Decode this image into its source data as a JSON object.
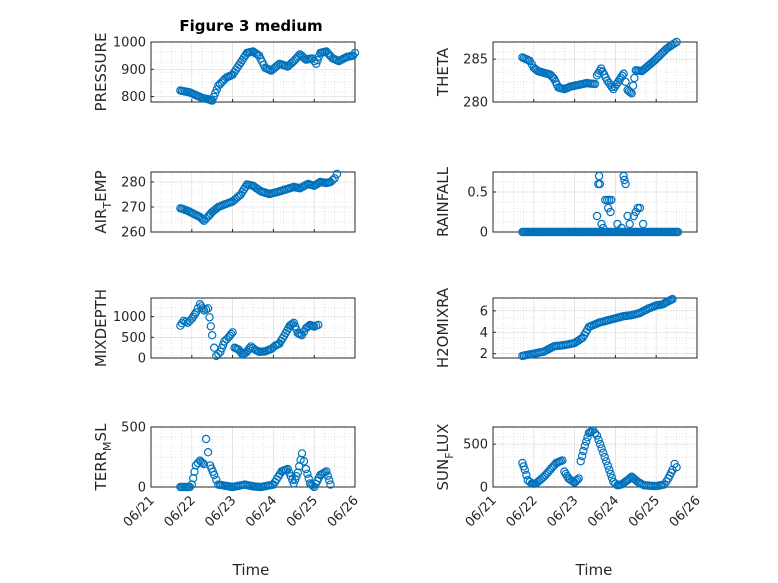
{
  "figure": {
    "title": "Figure 3 medium"
  },
  "colors": {
    "marker": "#0072BD",
    "axis": "#262626",
    "grid": "#d9d9d9"
  },
  "x_axis": {
    "label": "Time",
    "ticks": [
      {
        "label": "06/21",
        "value": 0
      },
      {
        "label": "06/22",
        "value": 1
      },
      {
        "label": "06/23",
        "value": 2
      },
      {
        "label": "06/24",
        "value": 3
      },
      {
        "label": "06/25",
        "value": 4
      },
      {
        "label": "06/26",
        "value": 5
      }
    ]
  },
  "chart_data": [
    {
      "type": "scatter",
      "ylabel": "PRESSURE",
      "ylim": [
        780,
        1000
      ],
      "yticks": [
        800,
        900,
        1000
      ],
      "grid": true,
      "anchors": [
        [
          0.72,
          822
        ],
        [
          0.95,
          815
        ],
        [
          1.1,
          805
        ],
        [
          1.25,
          795
        ],
        [
          1.4,
          790
        ],
        [
          1.5,
          785
        ],
        [
          1.65,
          840
        ],
        [
          1.85,
          870
        ],
        [
          2.0,
          880
        ],
        [
          2.2,
          925
        ],
        [
          2.35,
          960
        ],
        [
          2.5,
          965
        ],
        [
          2.65,
          950
        ],
        [
          2.8,
          905
        ],
        [
          2.95,
          895
        ],
        [
          3.15,
          920
        ],
        [
          3.35,
          910
        ],
        [
          3.5,
          930
        ],
        [
          3.65,
          955
        ],
        [
          3.8,
          935
        ],
        [
          3.95,
          940
        ],
        [
          4.05,
          920
        ],
        [
          4.15,
          960
        ],
        [
          4.3,
          965
        ],
        [
          4.45,
          940
        ],
        [
          4.6,
          930
        ],
        [
          4.8,
          945
        ],
        [
          4.95,
          950
        ],
        [
          5.0,
          960
        ]
      ]
    },
    {
      "type": "scatter",
      "ylabel": "THETA",
      "ylim": [
        280,
        287
      ],
      "yticks": [
        280,
        285
      ],
      "grid": true,
      "anchors": [
        [
          0.72,
          285.2
        ],
        [
          0.9,
          284.8
        ],
        [
          1.0,
          284
        ],
        [
          1.1,
          283.6
        ],
        [
          1.25,
          283.4
        ],
        [
          1.4,
          283.2
        ],
        [
          1.5,
          282.7
        ],
        [
          1.6,
          281.7
        ],
        [
          1.75,
          281.5
        ],
        [
          1.9,
          281.8
        ],
        [
          2.1,
          282.0
        ],
        [
          2.3,
          282.2
        ],
        [
          2.5,
          282.1
        ],
        [
          2.55,
          283.1
        ],
        [
          2.65,
          283.9
        ],
        [
          2.8,
          282.5
        ],
        [
          2.95,
          281.5
        ],
        [
          3.1,
          282.6
        ],
        [
          3.2,
          283.3
        ],
        [
          3.3,
          281.4
        ],
        [
          3.4,
          281.0
        ],
        [
          3.5,
          283.7
        ],
        [
          3.65,
          283.6
        ],
        [
          3.8,
          284.2
        ],
        [
          3.95,
          284.8
        ],
        [
          4.1,
          285.5
        ],
        [
          4.25,
          286.2
        ],
        [
          4.4,
          286.7
        ],
        [
          4.5,
          287.0
        ]
      ]
    },
    {
      "type": "scatter",
      "ylabel": "AIR_TEMP",
      "ylim": [
        260,
        284
      ],
      "yticks": [
        260,
        270,
        280
      ],
      "grid": true,
      "anchors": [
        [
          0.72,
          269.5
        ],
        [
          0.9,
          268.5
        ],
        [
          1.05,
          267.2
        ],
        [
          1.2,
          266.0
        ],
        [
          1.3,
          264.5
        ],
        [
          1.4,
          266.2
        ],
        [
          1.5,
          268.0
        ],
        [
          1.65,
          270.0
        ],
        [
          1.8,
          271.0
        ],
        [
          2.0,
          272.2
        ],
        [
          2.2,
          275.0
        ],
        [
          2.35,
          279.0
        ],
        [
          2.5,
          278.5
        ],
        [
          2.7,
          276.2
        ],
        [
          2.9,
          275.2
        ],
        [
          3.1,
          276.0
        ],
        [
          3.3,
          277.0
        ],
        [
          3.5,
          278.0
        ],
        [
          3.65,
          277.5
        ],
        [
          3.85,
          279.2
        ],
        [
          4.0,
          278.5
        ],
        [
          4.15,
          280.0
        ],
        [
          4.3,
          279.6
        ],
        [
          4.4,
          280.0
        ],
        [
          4.5,
          281.5
        ],
        [
          4.56,
          283.2
        ]
      ]
    },
    {
      "type": "scatter",
      "ylabel": "RAINFALL",
      "ylim": [
        0,
        0.75
      ],
      "yticks": [
        0,
        0.5
      ],
      "grid": true,
      "flat": {
        "x0": 0.72,
        "x1": 4.55,
        "y": 0
      },
      "points": [
        [
          2.55,
          0.2
        ],
        [
          2.58,
          0.6
        ],
        [
          2.6,
          0.7
        ],
        [
          2.62,
          0.6
        ],
        [
          2.66,
          0.1
        ],
        [
          2.7,
          0.05
        ],
        [
          2.75,
          0.4
        ],
        [
          2.8,
          0.4
        ],
        [
          2.82,
          0.3
        ],
        [
          2.85,
          0.4
        ],
        [
          2.88,
          0.25
        ],
        [
          2.9,
          0.4
        ],
        [
          3.05,
          0.1
        ],
        [
          3.15,
          0.05
        ],
        [
          3.2,
          0.7
        ],
        [
          3.22,
          0.65
        ],
        [
          3.25,
          0.6
        ],
        [
          3.3,
          0.2
        ],
        [
          3.35,
          0.1
        ],
        [
          3.45,
          0.2
        ],
        [
          3.5,
          0.25
        ],
        [
          3.55,
          0.3
        ],
        [
          3.6,
          0.3
        ],
        [
          3.68,
          0.1
        ]
      ]
    },
    {
      "type": "scatter",
      "ylabel": "MIXDEPTH",
      "ylim": [
        0,
        1450
      ],
      "yticks": [
        0,
        500,
        1000
      ],
      "grid": true,
      "anchors": [
        [
          0.72,
          780
        ],
        [
          0.8,
          900
        ],
        [
          0.9,
          850
        ],
        [
          1.0,
          950
        ],
        [
          1.1,
          1100
        ],
        [
          1.2,
          1300
        ],
        [
          1.3,
          1150
        ],
        [
          1.4,
          1200
        ],
        [
          1.5,
          550
        ],
        [
          1.55,
          250
        ],
        [
          1.6,
          50
        ],
        [
          1.7,
          150
        ],
        [
          1.8,
          400
        ],
        [
          1.9,
          500
        ],
        [
          2.0,
          620
        ],
        [
          2.05,
          250
        ],
        [
          2.15,
          200
        ],
        [
          2.25,
          80
        ],
        [
          2.35,
          150
        ],
        [
          2.45,
          280
        ],
        [
          2.55,
          200
        ],
        [
          2.65,
          150
        ],
        [
          2.8,
          160
        ],
        [
          2.95,
          220
        ],
        [
          3.05,
          300
        ],
        [
          3.15,
          350
        ],
        [
          3.3,
          600
        ],
        [
          3.4,
          780
        ],
        [
          3.5,
          850
        ],
        [
          3.6,
          600
        ],
        [
          3.7,
          550
        ],
        [
          3.8,
          720
        ],
        [
          3.9,
          800
        ],
        [
          4.0,
          760
        ],
        [
          4.1,
          800
        ]
      ]
    },
    {
      "type": "scatter",
      "ylabel": "H2OMIXRA",
      "ylim": [
        1.6,
        7.2
      ],
      "yticks": [
        2,
        4,
        6
      ],
      "grid": true,
      "anchors": [
        [
          0.72,
          1.8
        ],
        [
          1.0,
          2.0
        ],
        [
          1.25,
          2.2
        ],
        [
          1.5,
          2.7
        ],
        [
          1.75,
          2.8
        ],
        [
          2.0,
          3.0
        ],
        [
          2.2,
          3.5
        ],
        [
          2.35,
          4.5
        ],
        [
          2.6,
          4.9
        ],
        [
          2.8,
          5.1
        ],
        [
          3.0,
          5.3
        ],
        [
          3.2,
          5.5
        ],
        [
          3.4,
          5.6
        ],
        [
          3.6,
          5.8
        ],
        [
          3.8,
          6.2
        ],
        [
          4.0,
          6.5
        ],
        [
          4.15,
          6.6
        ],
        [
          4.3,
          6.9
        ],
        [
          4.4,
          7.1
        ]
      ]
    },
    {
      "type": "scatter",
      "ylabel": "TERR_MSL",
      "ylim": [
        0,
        500
      ],
      "yticks": [
        0,
        500
      ],
      "grid": true,
      "anchors": [
        [
          0.72,
          0
        ],
        [
          0.95,
          0
        ],
        [
          1.0,
          20
        ],
        [
          1.1,
          180
        ],
        [
          1.2,
          220
        ],
        [
          1.3,
          190
        ],
        [
          1.35,
          400
        ],
        [
          1.45,
          180
        ],
        [
          1.55,
          100
        ],
        [
          1.65,
          20
        ],
        [
          2.0,
          0
        ],
        [
          2.3,
          20
        ],
        [
          2.5,
          5
        ],
        [
          2.7,
          0
        ],
        [
          3.0,
          20
        ],
        [
          3.2,
          130
        ],
        [
          3.35,
          150
        ],
        [
          3.5,
          30
        ],
        [
          3.6,
          120
        ],
        [
          3.7,
          280
        ],
        [
          3.8,
          150
        ],
        [
          3.9,
          30
        ],
        [
          4.0,
          0
        ],
        [
          4.15,
          100
        ],
        [
          4.3,
          130
        ],
        [
          4.4,
          20
        ]
      ]
    },
    {
      "type": "scatter",
      "ylabel": "SUN_FLUX",
      "ylim": [
        0,
        700
      ],
      "yticks": [
        0,
        500
      ],
      "grid": true,
      "anchors": [
        [
          0.72,
          280
        ],
        [
          0.78,
          200
        ],
        [
          0.85,
          80
        ],
        [
          0.95,
          40
        ],
        [
          1.05,
          40
        ],
        [
          1.25,
          120
        ],
        [
          1.4,
          200
        ],
        [
          1.55,
          280
        ],
        [
          1.7,
          310
        ],
        [
          1.75,
          180
        ],
        [
          1.85,
          100
        ],
        [
          2.0,
          50
        ],
        [
          2.1,
          100
        ],
        [
          2.15,
          300
        ],
        [
          2.25,
          480
        ],
        [
          2.35,
          630
        ],
        [
          2.45,
          660
        ],
        [
          2.55,
          600
        ],
        [
          2.7,
          400
        ],
        [
          2.85,
          200
        ],
        [
          2.95,
          60
        ],
        [
          3.05,
          20
        ],
        [
          3.15,
          30
        ],
        [
          3.3,
          80
        ],
        [
          3.4,
          120
        ],
        [
          3.55,
          60
        ],
        [
          3.7,
          20
        ],
        [
          4.0,
          10
        ],
        [
          4.2,
          30
        ],
        [
          4.3,
          100
        ],
        [
          4.4,
          200
        ],
        [
          4.45,
          270
        ],
        [
          4.5,
          230
        ]
      ]
    }
  ]
}
